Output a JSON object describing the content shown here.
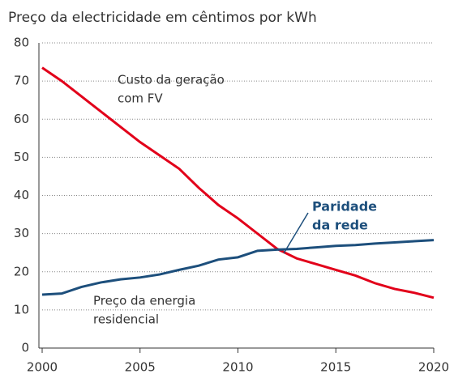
{
  "chart_data": {
    "type": "line",
    "title": "Preço da electricidade em cêntimos por kWh",
    "x": [
      2000,
      2001,
      2002,
      2003,
      2004,
      2005,
      2006,
      2007,
      2008,
      2009,
      2010,
      2011,
      2012,
      2013,
      2014,
      2015,
      2016,
      2017,
      2018,
      2019,
      2020
    ],
    "series": [
      {
        "color": "#e2001a",
        "values": [
          73.5,
          70,
          66,
          62,
          58,
          54,
          50.5,
          47,
          42,
          37.5,
          34,
          30,
          26,
          23.5,
          22,
          20.5,
          19,
          17,
          15.5,
          14.5,
          13.2
        ]
      },
      {
        "color": "#1d4f7c",
        "values": [
          14,
          14.3,
          16,
          17.2,
          18,
          18.5,
          19.3,
          20.5,
          21.6,
          23.2,
          23.8,
          25.5,
          25.8,
          26,
          26.4,
          26.8,
          27,
          27.4,
          27.7,
          28,
          28.3
        ]
      }
    ],
    "annotations": [
      {
        "lines": [
          "Custo da geração",
          "com FV"
        ],
        "bold": false
      },
      {
        "lines": [
          "Paridade",
          "da rede"
        ],
        "bold": true
      },
      {
        "lines": [
          "Preço da energia",
          "residencial"
        ],
        "bold": false
      }
    ],
    "xlim": [
      2000,
      2020
    ],
    "xticks": [
      2000,
      2005,
      2010,
      2015,
      2020
    ],
    "ylim": [
      0,
      80
    ],
    "yticks": [
      0,
      10,
      20,
      30,
      40,
      50,
      60,
      70,
      80
    ],
    "grid": true
  }
}
